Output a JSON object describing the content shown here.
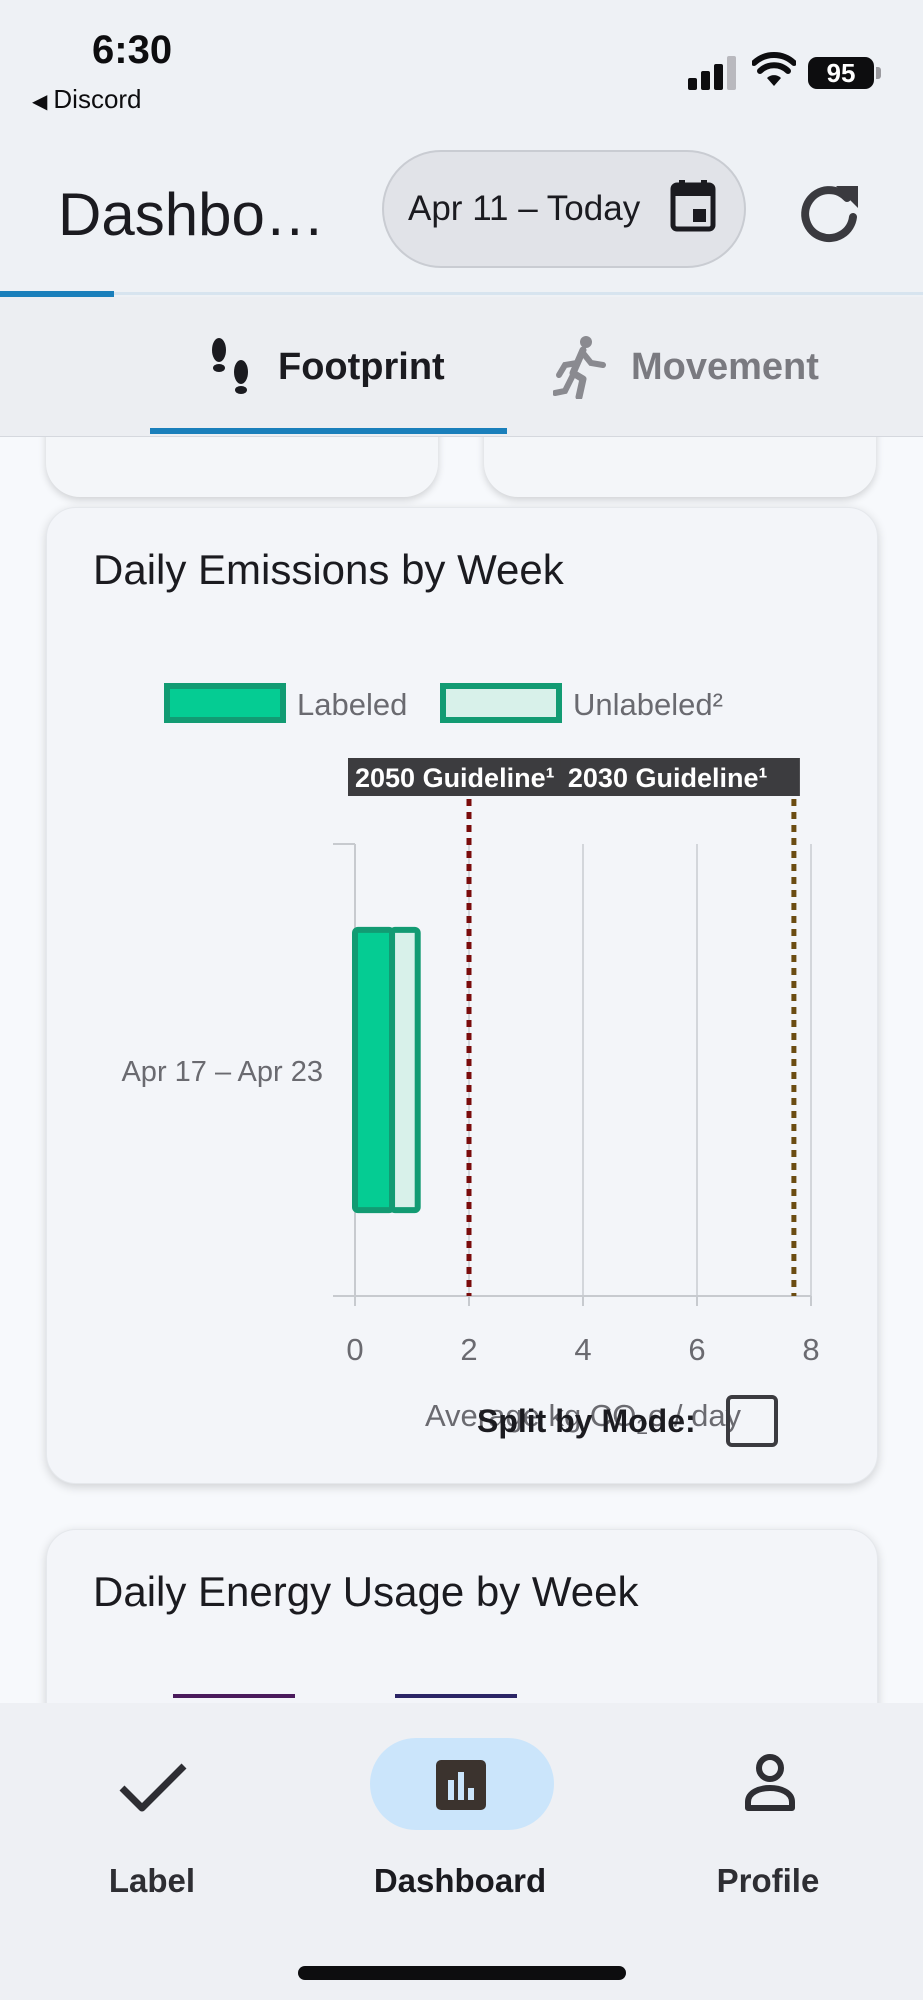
{
  "status_bar": {
    "time": "6:30",
    "back_app": "Discord",
    "battery": "95"
  },
  "header": {
    "title": "Dashbo…",
    "date_range": "Apr 11 – Today"
  },
  "tabs": [
    {
      "label": "Footprint",
      "icon": "footsteps-icon",
      "active": true
    },
    {
      "label": "Movement",
      "icon": "walking-person-icon",
      "active": false
    }
  ],
  "emissions_card": {
    "title": "Daily Emissions by Week",
    "split_label": "Split by Mode:",
    "split_checked": false
  },
  "energy_card": {
    "title": "Daily Energy Usage by Week"
  },
  "chart_data": {
    "type": "bar",
    "orientation": "horizontal",
    "stacked": true,
    "categories": [
      "Apr 17 – Apr 23"
    ],
    "series": [
      {
        "name": "Labeled",
        "values": [
          0.65
        ],
        "color": "#05cc93",
        "border": "#129b73"
      },
      {
        "name": "Unlabeled²",
        "values": [
          0.45
        ],
        "color": "#d8f1ea",
        "border": "#129b73"
      }
    ],
    "xlabel_prefix": "Average kg CO",
    "xlabel_sub": "2",
    "xlabel_suffix": "e / day",
    "xlim": [
      0,
      8
    ],
    "xticks": [
      "0",
      "2",
      "4",
      "6",
      "8"
    ],
    "xtick_values": [
      0,
      2,
      4,
      6,
      8
    ],
    "grid": true,
    "legend_placement": "top",
    "annotations": [
      {
        "label": "2050 Guideline¹",
        "value": 2,
        "color": "#7a0c0c"
      },
      {
        "label": "2030 Guideline¹",
        "value": 7.7,
        "color": "#6b4c12"
      }
    ]
  },
  "bottom_nav": [
    {
      "label": "Label",
      "icon": "check-icon",
      "active": false
    },
    {
      "label": "Dashboard",
      "icon": "bar-chart-icon",
      "active": true
    },
    {
      "label": "Profile",
      "icon": "person-icon",
      "active": false
    }
  ]
}
